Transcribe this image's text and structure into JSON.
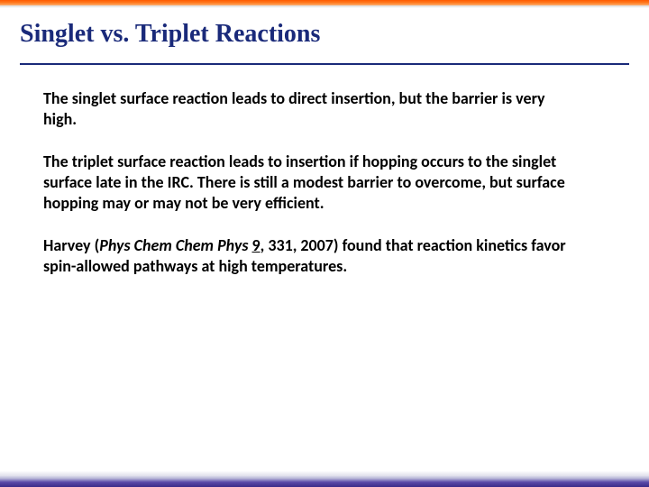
{
  "colors": {
    "title_color": "#1a2a7a",
    "body_text_color": "#000000",
    "top_bar_gradient": [
      "#ff5a00",
      "#ff7a20",
      "#ffb070"
    ],
    "bottom_bar_gradient": [
      "#d8d8e8",
      "#b8b8d8",
      "#5a4aa8",
      "#3a2a88"
    ],
    "rule_color": "#1a2a7a",
    "background": "#ffffff"
  },
  "typography": {
    "title_font": "Book Antiqua / Palatino, bold",
    "title_size_pt": 21,
    "body_font": "Gill Sans, semi-bold",
    "body_size_pt": 14
  },
  "title": "Singlet vs. Triplet Reactions",
  "paragraphs": {
    "p1": "The singlet surface reaction leads to direct insertion, but the barrier is very high.",
    "p2": "The triplet surface reaction leads to insertion if hopping occurs to the singlet surface late in the IRC. There is still a modest barrier to overcome, but surface hopping may or may not be very efficient.",
    "p3_prefix": "Harvey (",
    "p3_journal": "Phys Chem Chem Phys",
    "p3_space": " ",
    "p3_volume": "9",
    "p3_suffix": ", 331, 2007) found that reaction kinetics favor spin-allowed pathways at high temperatures."
  }
}
